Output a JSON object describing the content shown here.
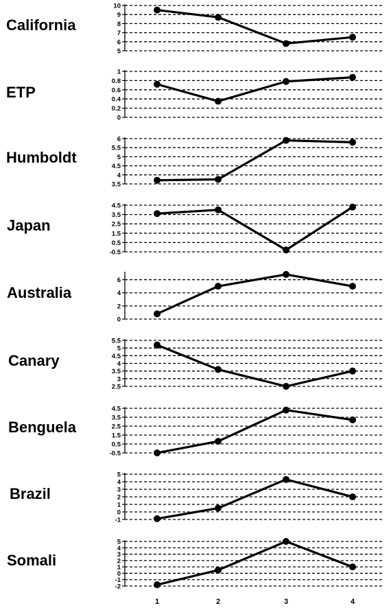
{
  "chart_data": [
    {
      "type": "line",
      "title": "California",
      "x": [
        1,
        2,
        3,
        4
      ],
      "values": [
        9.5,
        8.7,
        5.8,
        6.5
      ],
      "yticks": [
        "5",
        "6",
        "7",
        "8",
        "9",
        "10"
      ],
      "ylim": [
        5,
        10
      ],
      "grid": "dashed"
    },
    {
      "type": "line",
      "title": "ETP",
      "x": [
        1,
        2,
        3,
        4
      ],
      "values": [
        0.72,
        0.35,
        0.78,
        0.87
      ],
      "yticks": [
        "0",
        "0.2",
        "0.4",
        "0.6",
        "0.8",
        "1"
      ],
      "ylim": [
        0,
        1
      ],
      "grid": "dashed"
    },
    {
      "type": "line",
      "title": "Humboldt",
      "x": [
        1,
        2,
        3,
        4
      ],
      "values": [
        3.7,
        3.75,
        5.9,
        5.8
      ],
      "yticks": [
        "3.5",
        "4",
        "4.5",
        "5",
        "5.5",
        "6"
      ],
      "ylim": [
        3.5,
        6
      ],
      "grid": "dashed"
    },
    {
      "type": "line",
      "title": "Japan",
      "x": [
        1,
        2,
        3,
        4
      ],
      "values": [
        3.6,
        4.0,
        -0.3,
        4.3
      ],
      "yticks": [
        "-0.5",
        "0.5",
        "1.5",
        "2.5",
        "3.5",
        "4.5"
      ],
      "ylim": [
        -0.5,
        4.5
      ],
      "grid": "dashed"
    },
    {
      "type": "line",
      "title": "Australia",
      "x": [
        1,
        2,
        3,
        4
      ],
      "values": [
        0.8,
        5.0,
        6.8,
        5.0
      ],
      "yticks": [
        "0",
        "2",
        "4",
        "6"
      ],
      "ylim": [
        0,
        7
      ],
      "grid": "dashed"
    },
    {
      "type": "line",
      "title": "Canary",
      "x": [
        1,
        2,
        3,
        4
      ],
      "values": [
        5.2,
        3.6,
        2.5,
        3.5
      ],
      "yticks": [
        "2.5",
        "3",
        "3.5",
        "4",
        "4.5",
        "5",
        "5.5"
      ],
      "ylim": [
        2.5,
        5.5
      ],
      "grid": "dashed"
    },
    {
      "type": "line",
      "title": "Benguela",
      "x": [
        1,
        2,
        3,
        4
      ],
      "values": [
        -0.5,
        0.8,
        4.3,
        3.2
      ],
      "yticks": [
        "-0.5",
        "0.5",
        "1.5",
        "2.5",
        "3.5",
        "4.5"
      ],
      "ylim": [
        -0.5,
        4.5
      ],
      "grid": "dashed"
    },
    {
      "type": "line",
      "title": "Brazil",
      "x": [
        1,
        2,
        3,
        4
      ],
      "values": [
        -0.9,
        0.5,
        4.3,
        2.0
      ],
      "yticks": [
        "-1",
        "0",
        "1",
        "2",
        "3",
        "4",
        "5"
      ],
      "ylim": [
        -1,
        5
      ],
      "grid": "dashed"
    },
    {
      "type": "line",
      "title": "Somali",
      "x": [
        1,
        2,
        3,
        4
      ],
      "values": [
        -1.8,
        0.5,
        5.0,
        1.0
      ],
      "yticks": [
        "-2",
        "-1",
        "0",
        "1",
        "2",
        "3",
        "4",
        "5"
      ],
      "ylim": [
        -2,
        5
      ],
      "grid": "dashed"
    }
  ],
  "xticks": [
    "1",
    "2",
    "3",
    "4"
  ]
}
